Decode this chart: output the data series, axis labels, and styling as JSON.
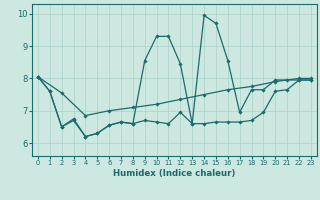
{
  "xlabel": "Humidex (Indice chaleur)",
  "xlim": [
    -0.5,
    23.5
  ],
  "ylim": [
    5.6,
    10.3
  ],
  "xticks": [
    0,
    1,
    2,
    3,
    4,
    5,
    6,
    7,
    8,
    9,
    10,
    11,
    12,
    13,
    14,
    15,
    16,
    17,
    18,
    19,
    20,
    21,
    22,
    23
  ],
  "yticks": [
    6,
    7,
    8,
    9,
    10
  ],
  "bg_color": "#cce8e0",
  "grid_color": "#aad0c8",
  "line_color": "#1a6b6b",
  "lines": [
    {
      "x": [
        0,
        1,
        2,
        3,
        4,
        5,
        6,
        7,
        8,
        9,
        10,
        11,
        12,
        13,
        14,
        15,
        16,
        17,
        18,
        19,
        20,
        21,
        22,
        23
      ],
      "y": [
        8.05,
        7.6,
        6.5,
        6.75,
        6.2,
        6.3,
        6.55,
        6.65,
        6.6,
        8.55,
        9.3,
        9.3,
        8.45,
        6.6,
        9.95,
        9.7,
        8.55,
        6.95,
        7.65,
        7.65,
        7.95,
        7.95,
        7.95,
        7.95
      ]
    },
    {
      "x": [
        0,
        2,
        4,
        6,
        8,
        10,
        12,
        14,
        16,
        18,
        20,
        22,
        23
      ],
      "y": [
        8.05,
        7.55,
        6.85,
        7.0,
        7.1,
        7.2,
        7.35,
        7.5,
        7.65,
        7.75,
        7.9,
        8.0,
        8.0
      ]
    },
    {
      "x": [
        0,
        1,
        2,
        3,
        4,
        5,
        6,
        7,
        8,
        9,
        10,
        11,
        12,
        13,
        14,
        15,
        16,
        17,
        18,
        19,
        20,
        21,
        22,
        23
      ],
      "y": [
        8.05,
        7.6,
        6.5,
        6.7,
        6.2,
        6.3,
        6.55,
        6.65,
        6.6,
        6.7,
        6.65,
        6.6,
        6.95,
        6.6,
        6.6,
        6.65,
        6.65,
        6.65,
        6.7,
        6.95,
        7.6,
        7.65,
        7.95,
        7.95
      ]
    }
  ]
}
